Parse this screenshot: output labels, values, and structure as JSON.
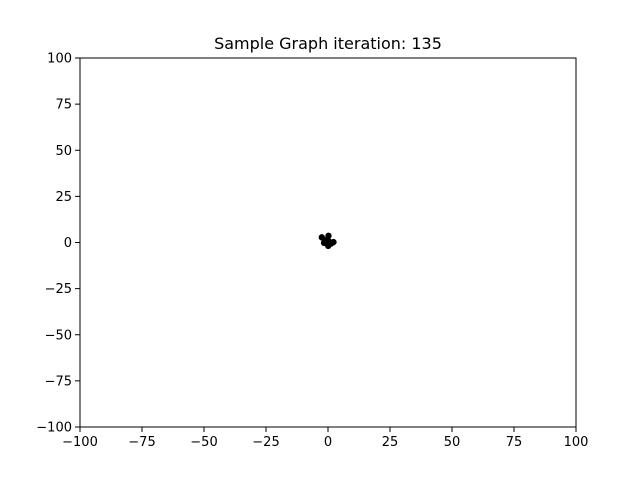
{
  "chart_data": {
    "type": "scatter",
    "title": "Sample Graph iteration: 135",
    "xlabel": "",
    "ylabel": "",
    "xlim": [
      -100,
      100
    ],
    "ylim": [
      -100,
      100
    ],
    "xticks": [
      -100,
      -75,
      -50,
      -25,
      0,
      25,
      50,
      75,
      100
    ],
    "yticks": [
      -100,
      -75,
      -50,
      -25,
      0,
      25,
      50,
      75,
      100
    ],
    "xtick_labels": [
      "−100",
      "−75",
      "−50",
      "−25",
      "0",
      "25",
      "50",
      "75",
      "100"
    ],
    "ytick_labels": [
      "−100",
      "−75",
      "−50",
      "−25",
      "0",
      "25",
      "50",
      "75",
      "100"
    ],
    "grid": false,
    "point_color": "#000000",
    "points": [
      {
        "x": -2.5,
        "y": 2.8
      },
      {
        "x": 0.2,
        "y": 3.6
      },
      {
        "x": -1.6,
        "y": -0.2
      },
      {
        "x": 0.3,
        "y": 0.6
      },
      {
        "x": 2.2,
        "y": 0.2
      },
      {
        "x": 0.1,
        "y": -1.8
      },
      {
        "x": -1.1,
        "y": 1.2
      },
      {
        "x": 1.2,
        "y": -0.6
      }
    ]
  }
}
